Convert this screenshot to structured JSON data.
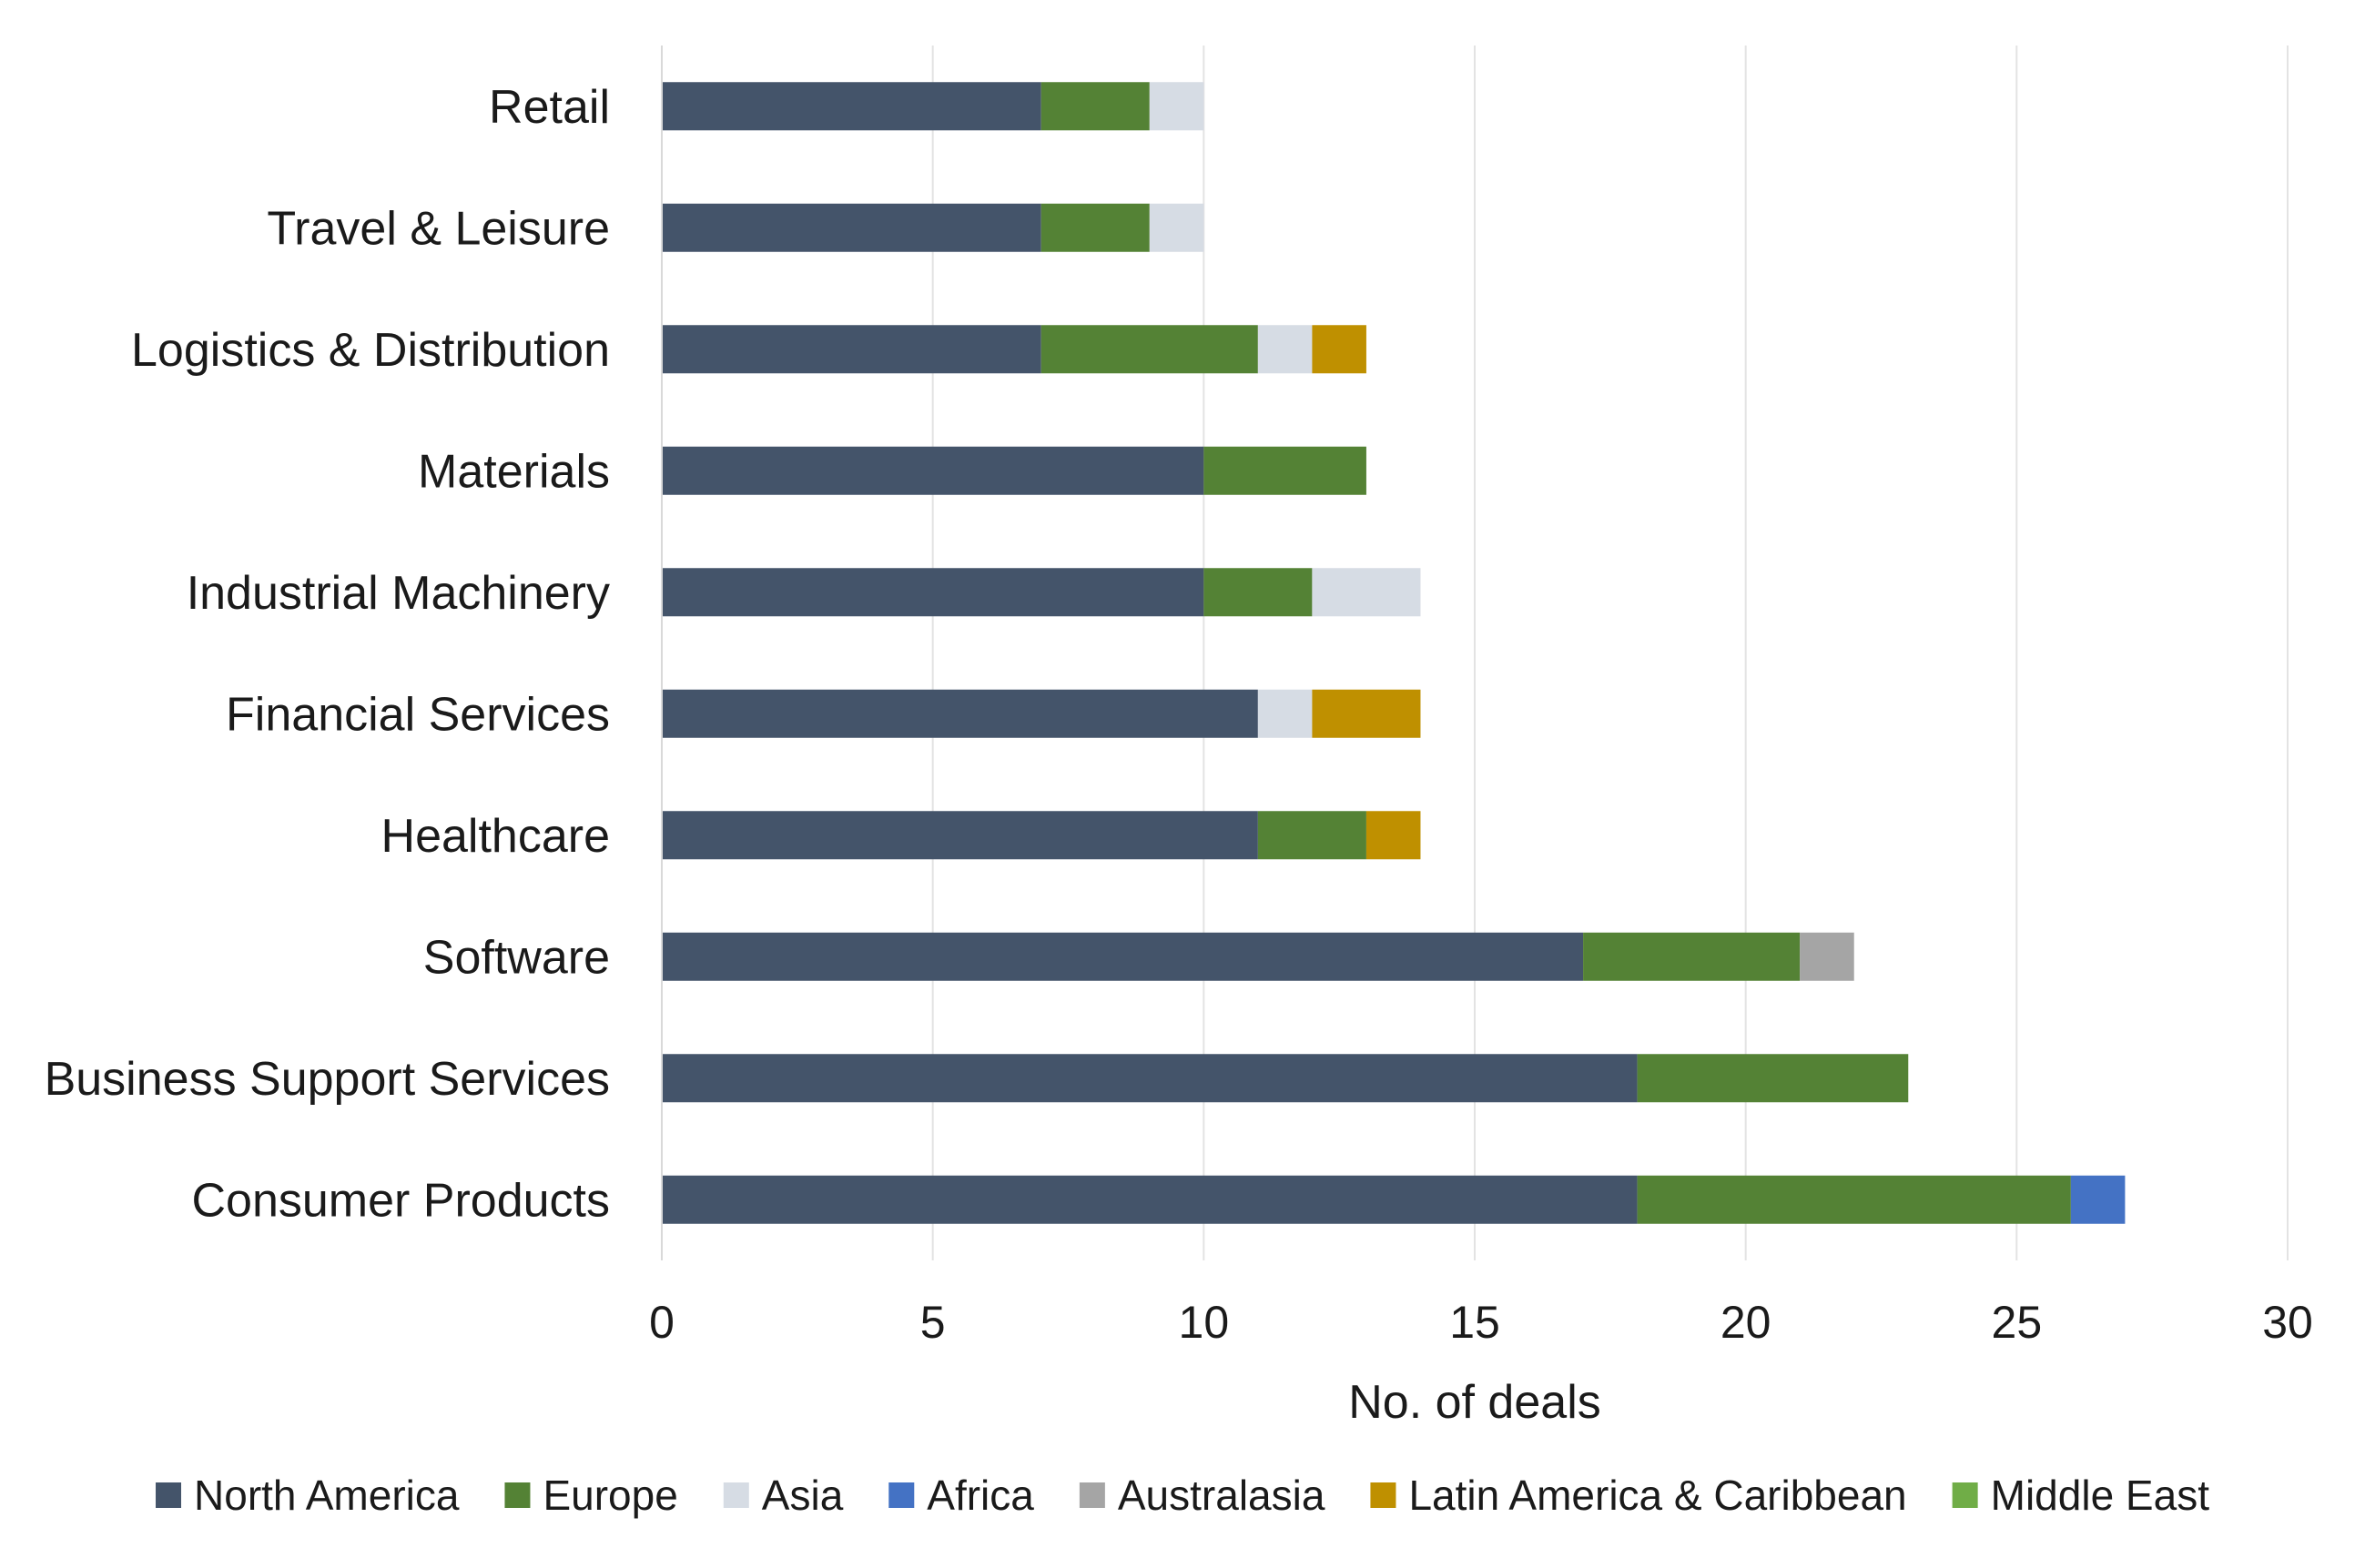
{
  "chart_data": {
    "type": "bar",
    "orientation": "horizontal",
    "stacked": true,
    "title": "",
    "xlabel": "No. of deals",
    "ylabel": "",
    "xlim": [
      0,
      30
    ],
    "xticks": [
      "0",
      "5",
      "10",
      "15",
      "20",
      "25",
      "30"
    ],
    "grid": "vertical",
    "legend_position": "bottom",
    "categories": [
      "Retail",
      "Travel & Leisure",
      "Logistics & Distribution",
      "Materials",
      "Industrial Machinery",
      "Financial Services",
      "Healthcare",
      "Software",
      "Business Support Services",
      "Consumer Products"
    ],
    "series": [
      {
        "name": "North America",
        "color": "#44546a",
        "values": [
          7,
          7,
          7,
          10,
          10,
          11,
          11,
          17,
          18,
          18
        ]
      },
      {
        "name": "Europe",
        "color": "#548235",
        "values": [
          2,
          2,
          4,
          3,
          2,
          0,
          2,
          4,
          5,
          8
        ]
      },
      {
        "name": "Asia",
        "color": "#d6dce4",
        "values": [
          1,
          1,
          1,
          0,
          2,
          1,
          0,
          0,
          0,
          0
        ]
      },
      {
        "name": "Africa",
        "color": "#4472c4",
        "values": [
          0,
          0,
          0,
          0,
          0,
          0,
          0,
          0,
          0,
          1
        ]
      },
      {
        "name": "Australasia",
        "color": "#a5a5a5",
        "values": [
          0,
          0,
          0,
          0,
          0,
          0,
          0,
          1,
          0,
          0
        ]
      },
      {
        "name": "Latin America & Caribbean",
        "color": "#bf9000",
        "values": [
          0,
          0,
          1,
          0,
          0,
          2,
          1,
          0,
          0,
          0
        ]
      },
      {
        "name": "Middle East",
        "color": "#70ad47",
        "values": [
          0,
          0,
          0,
          0,
          0,
          0,
          0,
          0,
          0,
          0
        ]
      }
    ]
  }
}
